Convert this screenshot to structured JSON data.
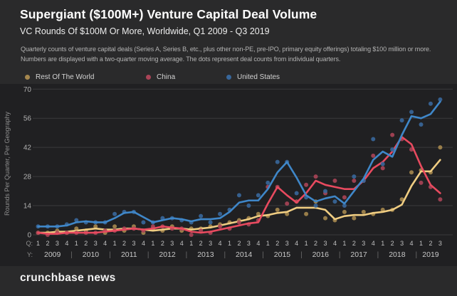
{
  "page": {
    "title": "Supergiant ($100M+) Venture Capital Deal Volume",
    "subtitle": "VC Rounds Of $100M Or More, Worldwide, Q1 2009 - Q3 2019",
    "description": "Quarterly counts of venture capital deals (Series A, Series B, etc., plus other non-PE, pre-IPO, primary equity offerings) totaling $100 million or more. Numbers are displayed with a two-quarter moving average. The dots represent deal counts from individual quarters.",
    "footer_logo": "crunchbase news"
  },
  "colors": {
    "background": "#2a2a2b",
    "panel": "#202022",
    "grid": "#3a3a3c",
    "axis_text": "#b0b0b0",
    "quarter_text": "#c0c0c0",
    "year_text": "#c8c8c8",
    "separator_text": "#6a6a6a",
    "ylabel_text": "#8d8d8d"
  },
  "chart_data": {
    "type": "line",
    "title": "Supergiant ($100M+) Venture Capital Deal Volume",
    "subtitle": "VC Rounds Of $100M Or More, Worldwide, Q1 2009 - Q3 2019",
    "ylabel": "Rounds Per Quarter, Per Geography",
    "ylim": [
      0,
      70
    ],
    "y_ticks": [
      0,
      14,
      28,
      42,
      56,
      70
    ],
    "grid": "horizontal",
    "legend_position": "top",
    "note": "Dots are deal counts from individual quarters; lines are two-quarter moving averages of the dots.",
    "x_axis": {
      "q_prefix": "Q:",
      "y_prefix": "Y:",
      "years": [
        "2009",
        "2010",
        "2011",
        "2012",
        "2013",
        "2014",
        "2015",
        "2016",
        "2017",
        "2018",
        "2019"
      ],
      "quarters_per_year": [
        4,
        4,
        4,
        4,
        4,
        4,
        4,
        4,
        4,
        4,
        3
      ]
    },
    "series": [
      {
        "name": "Rest Of The World",
        "line_color": "#f0cd82",
        "dot_color": "#a5874e",
        "dots": [
          1,
          1,
          2,
          1,
          3,
          2,
          4,
          1,
          4,
          2,
          4,
          1,
          3,
          2,
          4,
          2,
          3,
          3,
          4,
          5,
          6,
          7,
          8,
          10,
          9,
          12,
          10,
          16,
          10,
          16,
          8,
          7,
          11,
          8,
          11,
          10,
          12,
          12,
          17,
          30,
          31,
          30,
          42
        ]
      },
      {
        "name": "China",
        "line_color": "#e84a5f",
        "dot_color": "#aa4457",
        "dots": [
          1,
          0,
          1,
          1,
          1,
          1,
          1,
          2,
          2,
          3,
          3,
          2,
          4,
          4,
          3,
          3,
          0,
          2,
          1,
          4,
          3,
          6,
          5,
          7,
          23,
          23,
          15,
          16,
          24,
          28,
          20,
          26,
          18,
          26,
          26,
          38,
          32,
          48,
          46,
          41,
          25,
          23,
          17
        ]
      },
      {
        "name": "United States",
        "line_color": "#3f87c9",
        "dot_color": "#38679b",
        "dots": [
          4,
          4,
          4,
          5,
          7,
          6,
          6,
          6,
          10,
          11,
          11,
          6,
          6,
          8,
          8,
          7,
          6,
          9,
          6,
          10,
          12,
          19,
          14,
          19,
          25,
          35,
          35,
          20,
          18,
          14,
          21,
          16,
          14,
          28,
          26,
          46,
          34,
          41,
          55,
          59,
          53,
          63,
          65
        ]
      }
    ]
  }
}
